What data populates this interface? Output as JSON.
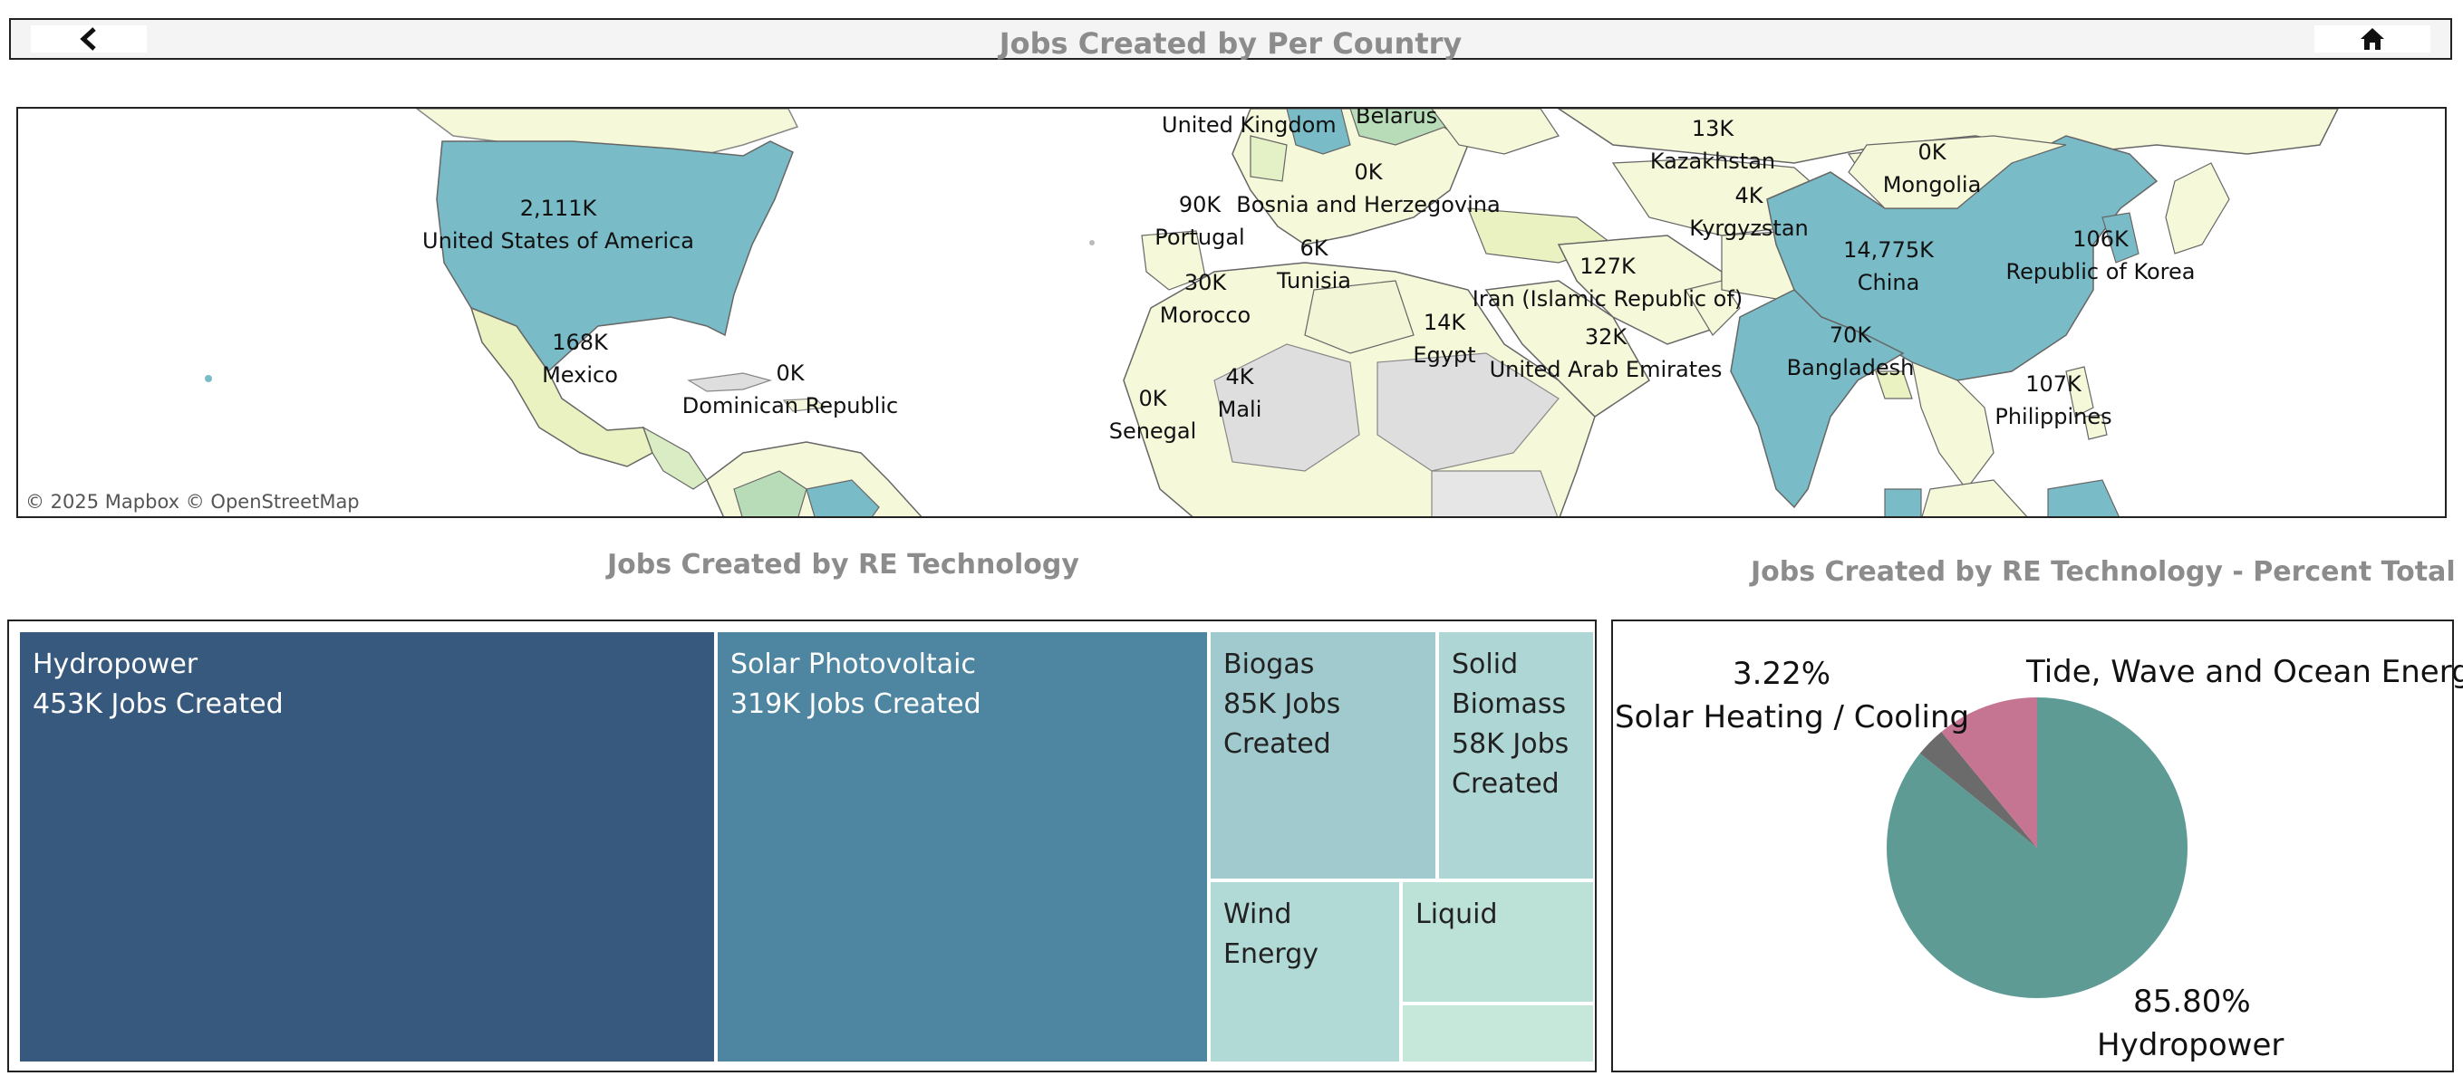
{
  "header": {
    "title": "Jobs Created by Per Country",
    "back_icon": "chevron-left-icon",
    "home_icon": "home-icon"
  },
  "map": {
    "credits": "© 2025 Mapbox  © OpenStreetMap",
    "labels": [
      {
        "name": "United States of America",
        "value": "2,111K"
      },
      {
        "name": "Mexico",
        "value": "168K"
      },
      {
        "name": "Dominican Republic",
        "value": "0K"
      },
      {
        "name": "United Kingdom",
        "value": ""
      },
      {
        "name": "Belarus",
        "value": ""
      },
      {
        "name": "Bosnia and Herzegovina",
        "value": "0K"
      },
      {
        "name": "Portugal",
        "value": "90K"
      },
      {
        "name": "Tunisia",
        "value": "6K"
      },
      {
        "name": "Morocco",
        "value": "30K"
      },
      {
        "name": "Senegal",
        "value": "0K"
      },
      {
        "name": "Mali",
        "value": "4K"
      },
      {
        "name": "Egypt",
        "value": "14K"
      },
      {
        "name": "Iran (Islamic Republic of)",
        "value": "127K"
      },
      {
        "name": "United Arab Emirates",
        "value": "32K"
      },
      {
        "name": "Kazakhstan",
        "value": "13K"
      },
      {
        "name": "Kyrgyzstan",
        "value": "4K"
      },
      {
        "name": "Mongolia",
        "value": "0K"
      },
      {
        "name": "China",
        "value": "14,775K"
      },
      {
        "name": "Republic of Korea",
        "value": "106K"
      },
      {
        "name": "Bangladesh",
        "value": "70K"
      },
      {
        "name": "Philippines",
        "value": "107K"
      }
    ],
    "colors": {
      "high": "#79bcc7",
      "mid": "#b9dcb8",
      "low": "#f5f8d9",
      "nodata": "#dedede"
    }
  },
  "treemap": {
    "title": "Jobs Created by RE Technology",
    "tiles": [
      {
        "lines": [
          "Hydropower",
          "453K Jobs Created"
        ],
        "color": "#37597d"
      },
      {
        "lines": [
          "Solar Photovoltaic",
          "319K Jobs Created"
        ],
        "color": "#4e86a1"
      },
      {
        "lines": [
          "Biogas",
          "85K Jobs",
          "Created"
        ],
        "color": "#a0cacd"
      },
      {
        "lines": [
          "Solid",
          "Biomass",
          "58K Jobs",
          "Created"
        ],
        "color": "#aed6d5"
      },
      {
        "lines": [
          "Wind",
          "Energy"
        ],
        "color": "#b1dad6"
      },
      {
        "lines": [
          "Liquid"
        ],
        "color": "#bce2d8"
      },
      {
        "lines": [],
        "color": "#c6e8da"
      }
    ]
  },
  "pie": {
    "title": "Jobs Created by RE Technology - Percent Total",
    "slices": [
      {
        "name": "Hydropower",
        "percent": 85.8,
        "color": "#5f9b95"
      },
      {
        "name": "Solar Heating / Cooling",
        "percent": 3.22,
        "color": "#6b6b6b"
      },
      {
        "name": "Tide, Wave and Ocean Energy",
        "percent": 10.98,
        "color": "#c57592"
      }
    ],
    "labels": {
      "hydro_pct": "85.80%",
      "hydro_name": "Hydropower",
      "solar_pct": "3.22%",
      "solar_name": "Solar Heating / Cooling",
      "tide_name": "Tide, Wave and Ocean Energy"
    }
  }
}
